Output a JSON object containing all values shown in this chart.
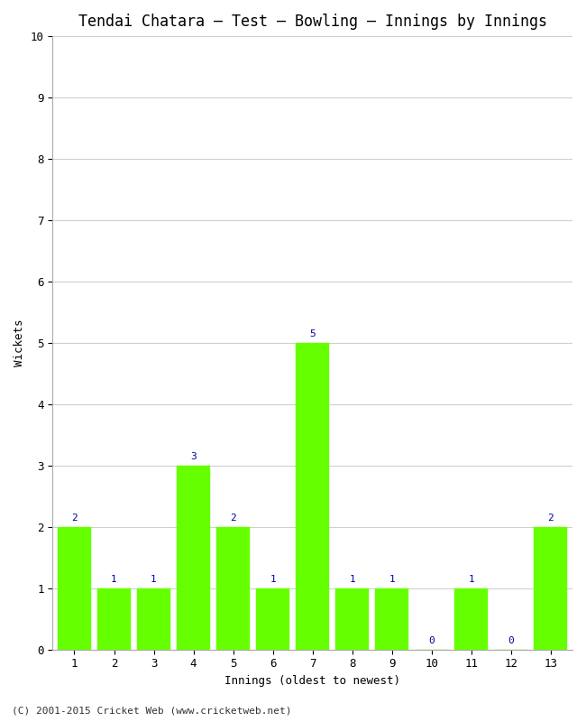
{
  "title": "Tendai Chatara – Test – Bowling – Innings by Innings",
  "xlabel": "Innings (oldest to newest)",
  "ylabel": "Wickets",
  "categories": [
    "1",
    "2",
    "3",
    "4",
    "5",
    "6",
    "7",
    "8",
    "9",
    "10",
    "11",
    "12",
    "13"
  ],
  "values": [
    2,
    1,
    1,
    3,
    2,
    1,
    5,
    1,
    1,
    0,
    1,
    0,
    2
  ],
  "bar_color": "#66ff00",
  "bar_edge_color": "#66ff00",
  "annotation_color": "#000099",
  "ylim": [
    0,
    10
  ],
  "yticks": [
    0,
    1,
    2,
    3,
    4,
    5,
    6,
    7,
    8,
    9,
    10
  ],
  "background_color": "#ffffff",
  "grid_color": "#d0d0d0",
  "title_fontsize": 12,
  "label_fontsize": 9,
  "tick_fontsize": 9,
  "annotation_fontsize": 8,
  "footer": "(C) 2001-2015 Cricket Web (www.cricketweb.net)"
}
